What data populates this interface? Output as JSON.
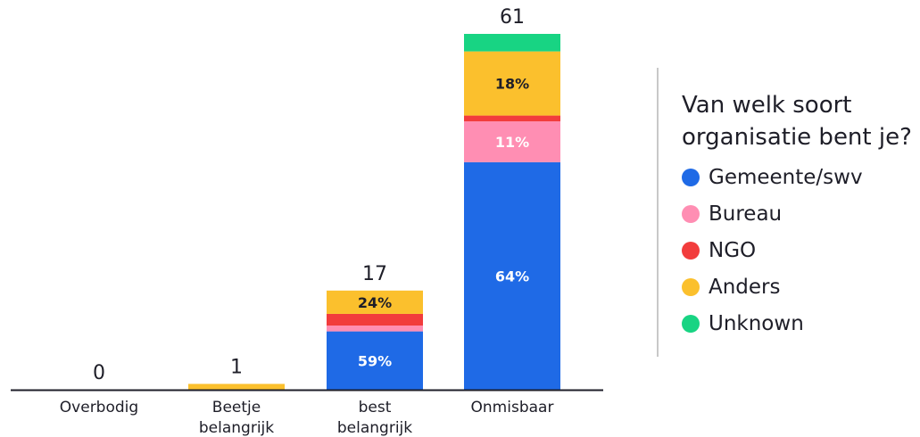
{
  "chart_data": {
    "type": "bar",
    "stacked": true,
    "categories": [
      "Overbodig",
      "Beetje belangrijk",
      "best belangrijk",
      "Onmisbaar"
    ],
    "category_lines": [
      [
        "Overbodig"
      ],
      [
        "Beetje",
        "belangrijk"
      ],
      [
        "best",
        "belangrijk"
      ],
      [
        "Onmisbaar"
      ]
    ],
    "totals": [
      0,
      1,
      17,
      61
    ],
    "series": [
      {
        "name": "Gemeente/swv",
        "color": "#1f6ae6",
        "values": [
          0,
          0,
          10,
          39
        ],
        "labels": [
          "",
          "",
          "59%",
          "64%"
        ]
      },
      {
        "name": "Bureau",
        "color": "#ff8eb3",
        "values": [
          0,
          0,
          1,
          7
        ],
        "labels": [
          "",
          "",
          "",
          "11%"
        ]
      },
      {
        "name": "NGO",
        "color": "#f23c3c",
        "values": [
          0,
          0,
          2,
          1
        ],
        "labels": [
          "",
          "",
          "",
          ""
        ]
      },
      {
        "name": "Anders",
        "color": "#fbc02d",
        "values": [
          0,
          1,
          4,
          11
        ],
        "labels": [
          "",
          "",
          "24%",
          "18%"
        ]
      },
      {
        "name": "Unknown",
        "color": "#18d483",
        "values": [
          0,
          0,
          0,
          3
        ],
        "labels": [
          "",
          "",
          "",
          ""
        ]
      }
    ],
    "legend_title": "Van welk soort organisatie bent je?",
    "legend_position": "right",
    "ylim": [
      0,
      61
    ],
    "grid": false
  }
}
